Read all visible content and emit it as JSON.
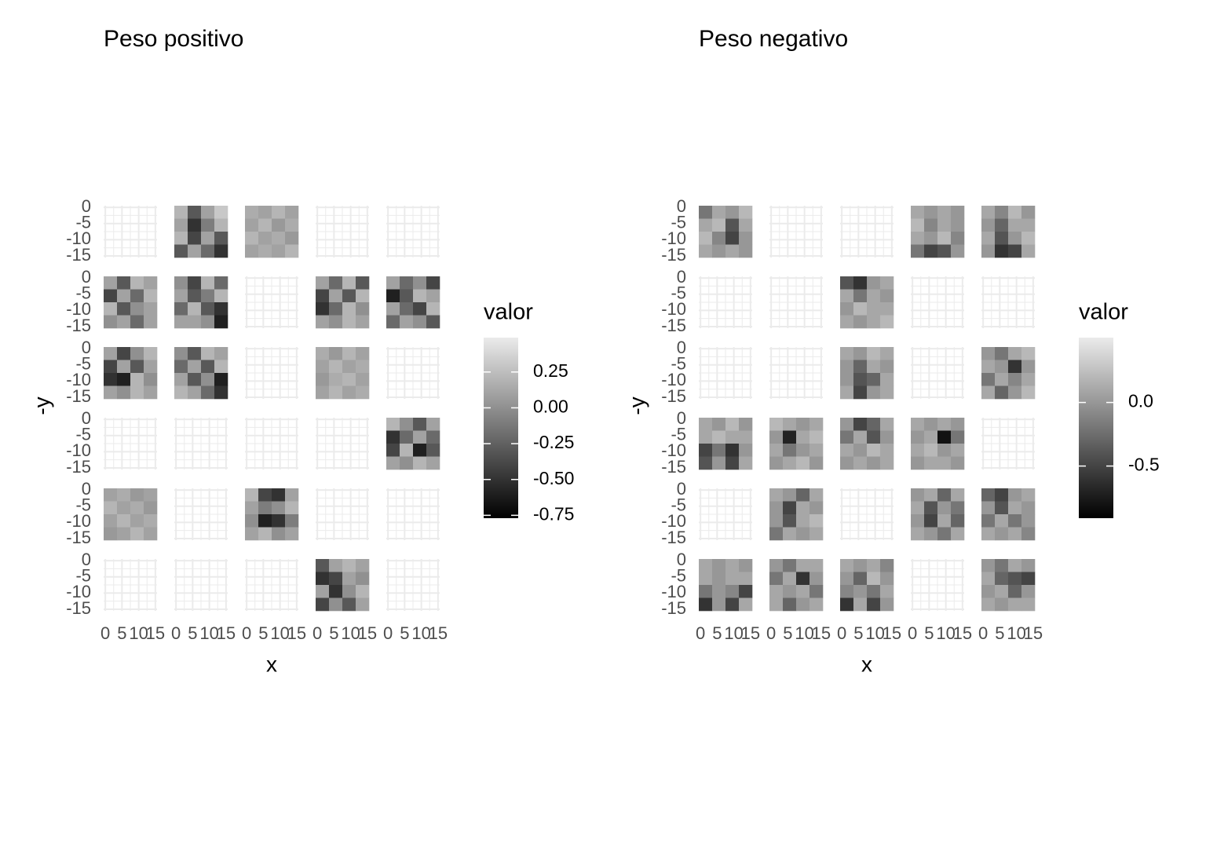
{
  "chart_data": [
    {
      "type": "heatmap",
      "title": "Peso positivo",
      "x_label": "x",
      "y_label": "-y",
      "legend_title": "valor",
      "xlim": [
        -0.5,
        15.5
      ],
      "ylim": [
        -15.5,
        0.5
      ],
      "xticks": [
        0,
        5,
        10,
        15
      ],
      "yticks": [
        0,
        -5,
        -10,
        -15
      ],
      "clim": [
        -0.77,
        0.49
      ],
      "colorbar_ticks": [
        0.25,
        {
          "value": 0,
          "label": "0.00"
        },
        -0.25,
        {
          "value": -0.5,
          "label": "-0.50"
        },
        -0.75
      ],
      "panels": [
        null,
        [
          0.2,
          -0.3,
          0.1,
          0.3,
          0.1,
          -0.5,
          -0.1,
          0.2,
          0.2,
          -0.4,
          0.1,
          -0.3,
          -0.3,
          0.1,
          -0.2,
          -0.5
        ],
        [
          0.15,
          0.1,
          0.2,
          0.1,
          0.1,
          0.2,
          0.05,
          0.15,
          0.2,
          0.1,
          0.15,
          0.05,
          0.1,
          0.15,
          0.1,
          0.2
        ],
        null,
        null,
        [
          0.1,
          -0.3,
          0.2,
          0.1,
          -0.4,
          0.1,
          -0.2,
          0.2,
          0.2,
          -0.3,
          0.0,
          0.1,
          0.0,
          0.1,
          -0.2,
          0.1
        ],
        [
          0.0,
          -0.4,
          0.2,
          -0.2,
          0.1,
          -0.3,
          -0.1,
          0.2,
          -0.2,
          0.2,
          -0.3,
          -0.5,
          0.1,
          0.1,
          0.0,
          -0.6
        ],
        null,
        [
          0.1,
          -0.2,
          0.2,
          -0.3,
          -0.4,
          0.1,
          -0.3,
          0.2,
          -0.5,
          -0.2,
          0.2,
          0.0,
          0.1,
          0.0,
          0.2,
          0.1
        ],
        [
          0.1,
          -0.2,
          0.0,
          -0.4,
          -0.6,
          -0.3,
          0.2,
          0.1,
          0.1,
          -0.2,
          -0.4,
          0.2,
          -0.2,
          0.1,
          0.0,
          -0.3
        ],
        [
          0.1,
          -0.4,
          0.0,
          0.2,
          -0.4,
          0.1,
          -0.3,
          0.1,
          -0.5,
          -0.6,
          0.2,
          0.0,
          0.1,
          0.0,
          0.2,
          0.1
        ],
        [
          0.0,
          -0.3,
          0.2,
          0.1,
          -0.2,
          0.1,
          -0.3,
          0.2,
          0.1,
          -0.3,
          0.0,
          -0.6,
          0.2,
          0.1,
          -0.2,
          -0.5
        ],
        null,
        [
          0.15,
          0.05,
          0.2,
          0.1,
          0.1,
          0.2,
          0.1,
          0.15,
          0.05,
          0.15,
          0.2,
          0.1,
          0.1,
          0.2,
          0.1,
          0.15
        ],
        null,
        null,
        null,
        null,
        null,
        [
          0.2,
          0.0,
          -0.3,
          0.1,
          -0.5,
          -0.2,
          0.1,
          -0.2,
          -0.4,
          0.2,
          -0.6,
          -0.3,
          0.1,
          0.0,
          0.2,
          0.1
        ],
        [
          0.1,
          0.15,
          0.05,
          0.1,
          0.2,
          0.1,
          0.15,
          0.05,
          0.1,
          0.2,
          0.1,
          0.15,
          0.05,
          0.1,
          0.2,
          0.1
        ],
        null,
        [
          0.2,
          -0.4,
          -0.5,
          0.1,
          0.1,
          -0.1,
          0.0,
          0.2,
          0.0,
          -0.6,
          -0.5,
          -0.1,
          0.1,
          0.2,
          0.0,
          0.1
        ],
        null,
        null,
        null,
        null,
        null,
        [
          -0.3,
          0.1,
          0.2,
          0.1,
          -0.5,
          -0.4,
          0.1,
          0.0,
          0.1,
          -0.5,
          0.0,
          0.2,
          -0.4,
          0.0,
          -0.3,
          0.1
        ],
        null
      ]
    },
    {
      "type": "heatmap",
      "title": "Peso negativo",
      "x_label": "x",
      "y_label": "-y",
      "legend_title": "valor",
      "xlim": [
        -0.5,
        15.5
      ],
      "ylim": [
        -15.5,
        0.5
      ],
      "xticks": [
        0,
        5,
        10,
        15
      ],
      "yticks": [
        0,
        -5,
        -10,
        -15
      ],
      "clim": [
        -0.91,
        0.51
      ],
      "colorbar_ticks": [
        {
          "value": 0,
          "label": "0.0"
        },
        -0.5
      ],
      "panels": [
        [
          -0.2,
          0.1,
          0.0,
          0.2,
          0.1,
          0.2,
          -0.4,
          0.1,
          0.2,
          -0.1,
          -0.5,
          0.0,
          0.1,
          0.0,
          0.1,
          0.0
        ],
        null,
        null,
        [
          0.1,
          0.0,
          0.1,
          0.0,
          0.2,
          -0.1,
          0.1,
          0.0,
          0.1,
          0.0,
          0.2,
          -0.1,
          -0.2,
          -0.5,
          -0.4,
          0.0
        ],
        [
          0.1,
          -0.1,
          0.2,
          0.0,
          0.0,
          -0.3,
          0.1,
          0.1,
          0.1,
          -0.4,
          0.0,
          0.2,
          0.0,
          -0.6,
          -0.5,
          0.1
        ],
        null,
        null,
        [
          -0.4,
          -0.6,
          0.0,
          0.1,
          0.1,
          -0.2,
          0.1,
          0.0,
          0.0,
          0.2,
          0.1,
          0.1,
          0.1,
          0.0,
          0.1,
          0.2
        ],
        null,
        null,
        null,
        null,
        [
          0.1,
          0.0,
          0.2,
          0.1,
          0.0,
          -0.3,
          0.1,
          0.0,
          0.0,
          -0.4,
          -0.3,
          0.1,
          0.1,
          -0.5,
          0.0,
          0.1
        ],
        null,
        [
          0.0,
          -0.2,
          0.1,
          0.2,
          0.1,
          0.0,
          -0.6,
          0.0,
          -0.2,
          0.1,
          -0.1,
          0.1,
          0.1,
          -0.3,
          0.0,
          0.2
        ],
        [
          0.1,
          0.0,
          0.2,
          0.0,
          0.1,
          0.2,
          0.1,
          0.1,
          -0.5,
          -0.2,
          -0.6,
          0.0,
          -0.4,
          0.0,
          -0.5,
          0.1
        ],
        [
          0.2,
          0.1,
          0.0,
          0.1,
          0.0,
          -0.7,
          0.1,
          0.2,
          0.1,
          -0.2,
          0.0,
          0.1,
          0.0,
          0.1,
          0.2,
          0.0
        ],
        [
          0.0,
          -0.5,
          -0.3,
          0.1,
          -0.2,
          0.1,
          -0.4,
          0.0,
          0.1,
          0.0,
          0.2,
          0.1,
          0.0,
          0.1,
          0.0,
          0.1
        ],
        [
          0.1,
          0.0,
          0.1,
          0.0,
          0.0,
          0.1,
          -0.8,
          -0.2,
          0.1,
          0.2,
          0.0,
          0.1,
          0.0,
          0.1,
          0.1,
          0.0
        ],
        null,
        null,
        [
          0.1,
          0.0,
          -0.3,
          0.1,
          0.0,
          -0.5,
          0.1,
          0.0,
          0.0,
          -0.4,
          0.1,
          0.2,
          -0.2,
          0.1,
          0.0,
          0.1
        ],
        null,
        [
          0.0,
          0.1,
          -0.3,
          0.1,
          0.1,
          -0.4,
          0.0,
          -0.2,
          0.0,
          -0.5,
          0.1,
          -0.3,
          0.1,
          0.0,
          -0.2,
          0.1
        ],
        [
          -0.3,
          -0.5,
          0.0,
          0.1,
          0.0,
          -0.4,
          0.1,
          0.0,
          -0.2,
          0.1,
          -0.2,
          0.0,
          0.1,
          0.0,
          0.1,
          -0.1
        ],
        [
          0.1,
          0.0,
          0.1,
          0.0,
          0.1,
          0.0,
          0.1,
          0.1,
          -0.2,
          0.0,
          -0.1,
          -0.5,
          -0.6,
          0.0,
          -0.5,
          0.1
        ],
        [
          0.0,
          -0.2,
          0.1,
          0.1,
          -0.2,
          0.1,
          -0.6,
          0.0,
          0.1,
          0.0,
          0.1,
          -0.2,
          0.1,
          -0.3,
          0.0,
          0.1
        ],
        [
          0.1,
          0.0,
          0.1,
          -0.1,
          0.0,
          -0.3,
          0.2,
          0.0,
          -0.1,
          0.0,
          -0.2,
          0.1,
          -0.6,
          0.1,
          -0.5,
          0.0
        ],
        null,
        [
          0.0,
          -0.2,
          0.1,
          0.0,
          0.1,
          -0.3,
          -0.4,
          -0.5,
          0.0,
          0.1,
          -0.3,
          0.0,
          0.1,
          0.0,
          0.1,
          0.1
        ]
      ]
    }
  ]
}
